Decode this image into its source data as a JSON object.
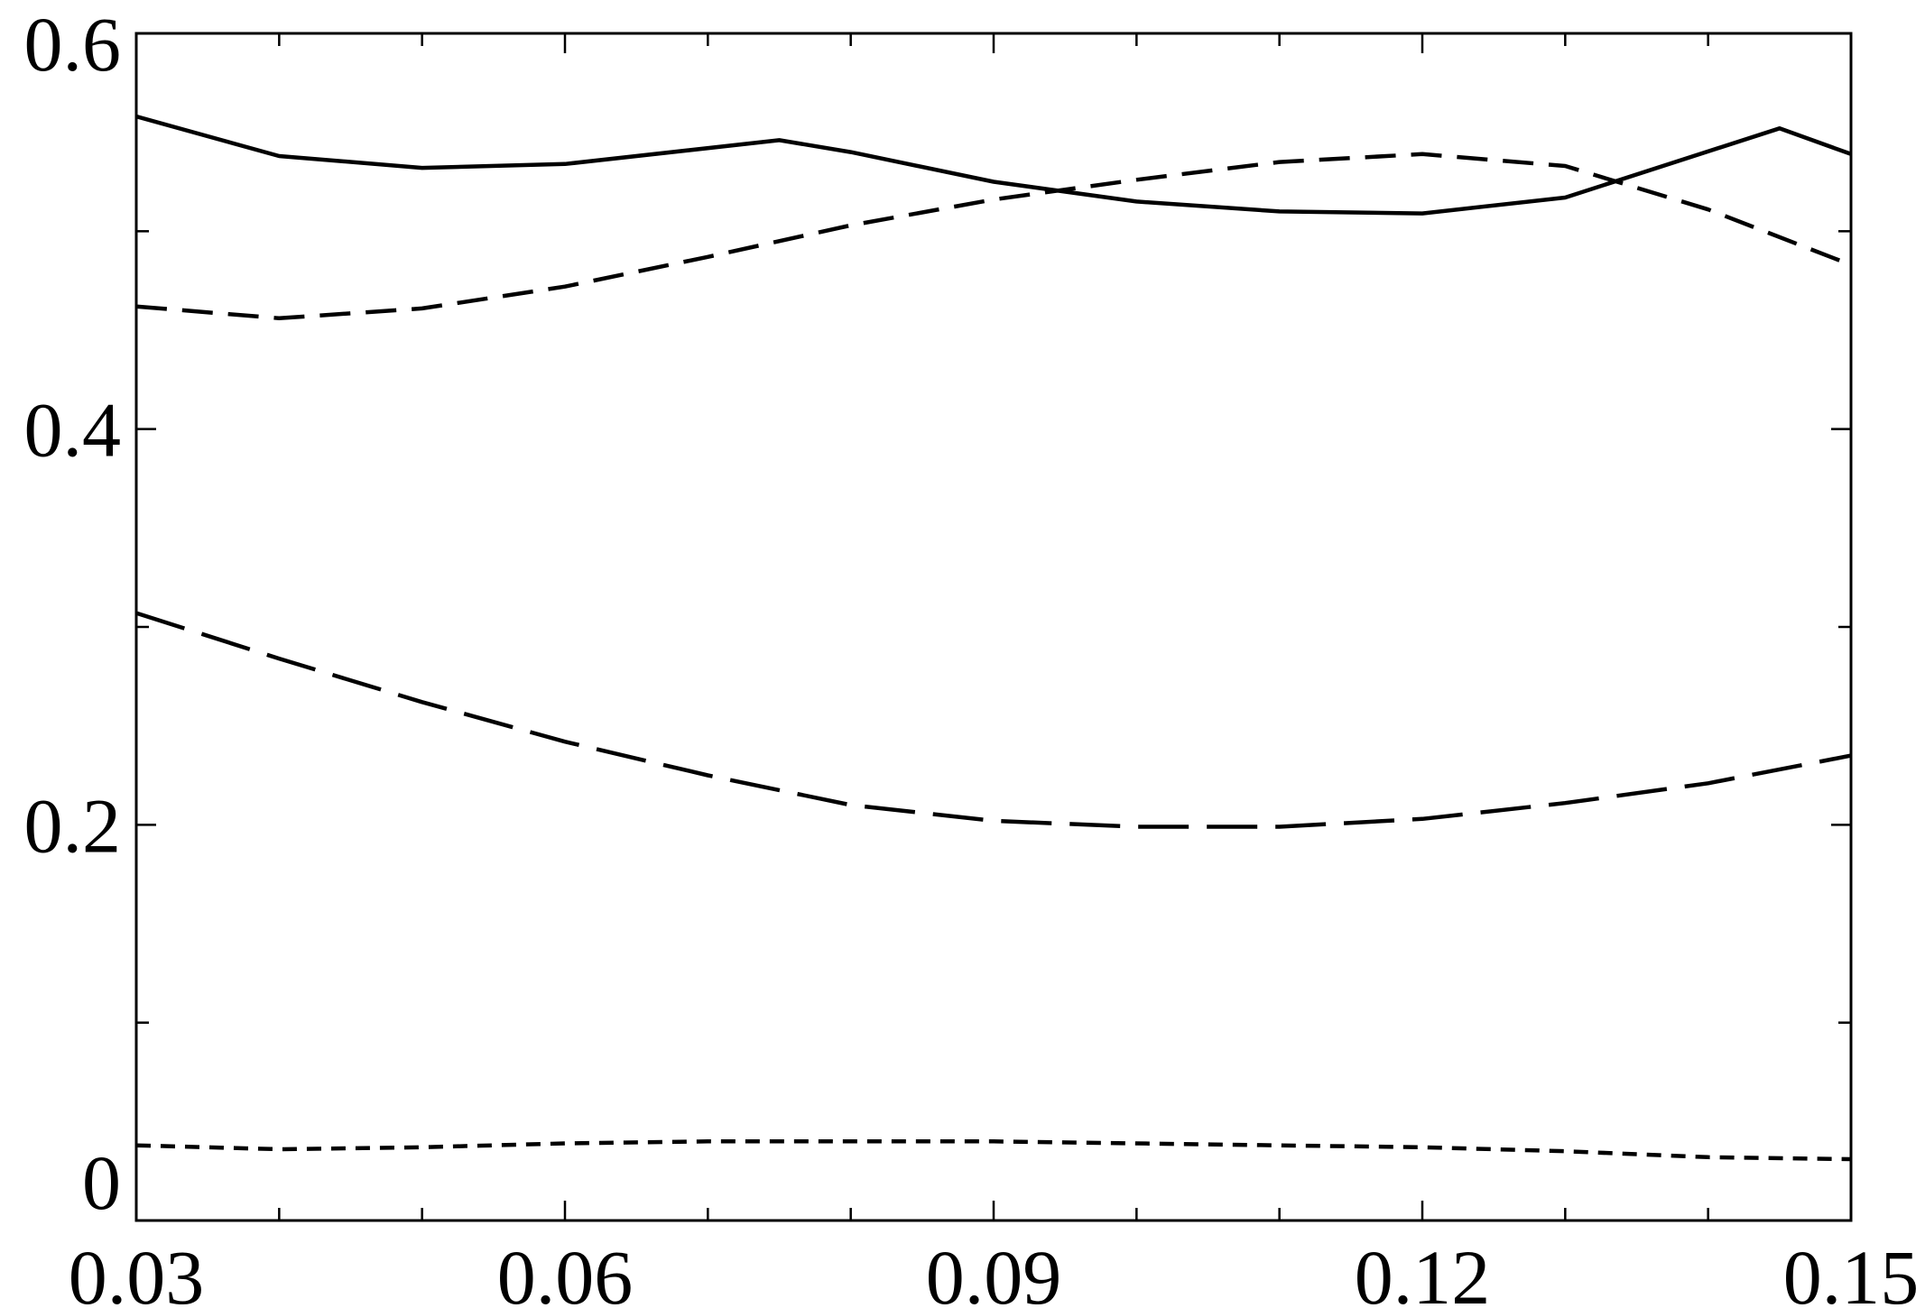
{
  "chart_data": {
    "type": "line",
    "title": "",
    "xlabel": "",
    "ylabel": "",
    "xlim": [
      0.03,
      0.15
    ],
    "ylim": [
      0,
      0.6
    ],
    "grid": false,
    "x_major_ticks": [
      0.03,
      0.06,
      0.09,
      0.12,
      0.15
    ],
    "x_major_tick_labels": [
      "0.03",
      "0.06",
      "0.09",
      "0.12",
      "0.15"
    ],
    "x_minor_ticks": [
      0.04,
      0.05,
      0.07,
      0.08,
      0.1,
      0.11,
      0.13,
      0.14
    ],
    "y_major_ticks": [
      0,
      0.2,
      0.4,
      0.6
    ],
    "y_major_tick_labels": [
      "0",
      "0.2",
      "0.4",
      "0.6"
    ],
    "y_minor_ticks": [
      0.1,
      0.3,
      0.5
    ],
    "series": [
      {
        "line_style": "solid",
        "x": [
          0.03,
          0.04,
          0.05,
          0.06,
          0.075,
          0.08,
          0.09,
          0.1,
          0.11,
          0.12,
          0.13,
          0.145,
          0.15
        ],
        "values": [
          0.558,
          0.538,
          0.532,
          0.534,
          0.546,
          0.54,
          0.525,
          0.515,
          0.51,
          0.509,
          0.517,
          0.552,
          0.539
        ]
      },
      {
        "line_style": "medium-dash",
        "x": [
          0.03,
          0.04,
          0.05,
          0.06,
          0.07,
          0.08,
          0.09,
          0.1,
          0.11,
          0.12,
          0.13,
          0.14,
          0.15
        ],
        "values": [
          0.462,
          0.456,
          0.461,
          0.472,
          0.487,
          0.503,
          0.516,
          0.526,
          0.535,
          0.539,
          0.533,
          0.511,
          0.483
        ]
      },
      {
        "line_style": "long-dash",
        "x": [
          0.03,
          0.04,
          0.05,
          0.06,
          0.07,
          0.08,
          0.09,
          0.1,
          0.11,
          0.12,
          0.13,
          0.14,
          0.15
        ],
        "values": [
          0.307,
          0.284,
          0.262,
          0.242,
          0.225,
          0.21,
          0.202,
          0.199,
          0.199,
          0.203,
          0.211,
          0.221,
          0.235
        ]
      },
      {
        "line_style": "short-dash",
        "x": [
          0.03,
          0.04,
          0.05,
          0.06,
          0.07,
          0.08,
          0.09,
          0.1,
          0.11,
          0.12,
          0.13,
          0.14,
          0.15
        ],
        "values": [
          0.038,
          0.036,
          0.037,
          0.039,
          0.04,
          0.04,
          0.04,
          0.039,
          0.038,
          0.037,
          0.035,
          0.032,
          0.031
        ]
      }
    ]
  }
}
